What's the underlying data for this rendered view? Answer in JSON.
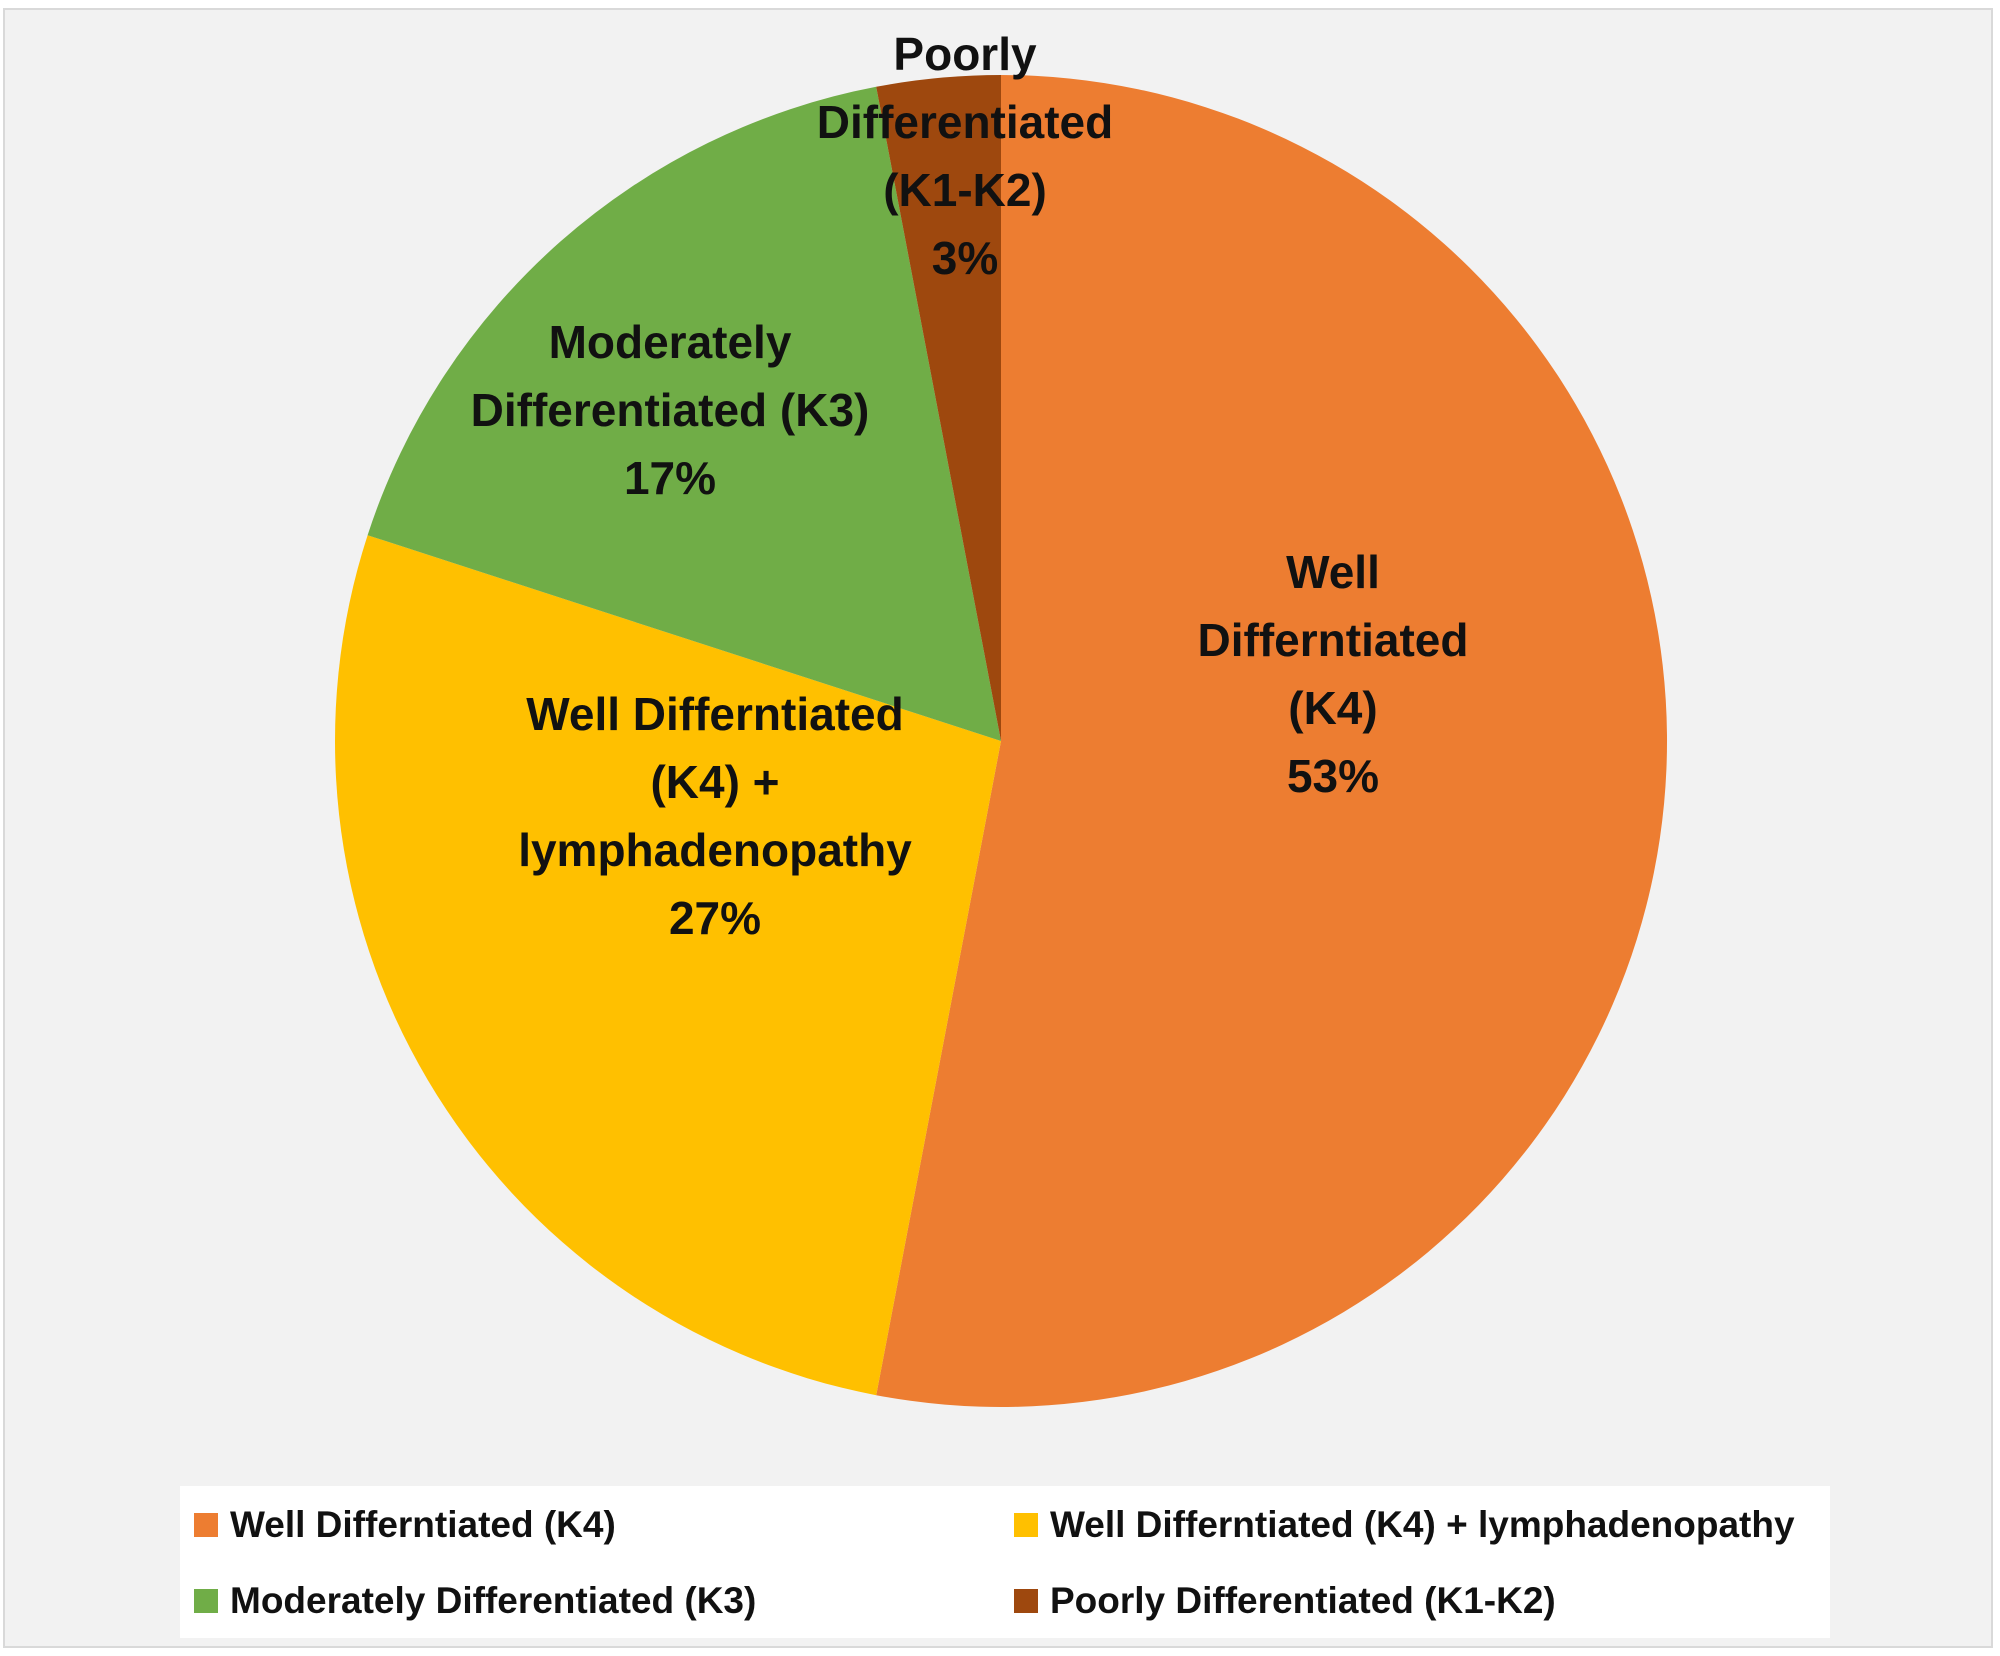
{
  "chart_data": {
    "type": "pie",
    "title": "",
    "start": "12 o'clock, clockwise",
    "slices": [
      {
        "name": "Well Differntiated (K4)",
        "label_lines": [
          "Well",
          "Differntiated",
          "(K4)",
          "53%"
        ],
        "value": 53,
        "percent_label": "53%",
        "color": "#ed7d31"
      },
      {
        "name": "Well Differntiated (K4) + lymphadenopathy",
        "label_lines": [
          "Well Differntiated",
          "(K4) +",
          "lymphadenopathy",
          "27%"
        ],
        "value": 27,
        "percent_label": "27%",
        "color": "#ffc000"
      },
      {
        "name": "Moderately Differentiated (K3)",
        "label_lines": [
          "Moderately",
          "Differentiated (K3)",
          "17%"
        ],
        "value": 17,
        "percent_label": "17%",
        "color": "#70ad47"
      },
      {
        "name": "Poorly Differentiated (K1-K2)",
        "label_lines": [
          "Poorly",
          "Differentiated",
          "(K1-K2)",
          "3%"
        ],
        "value": 3,
        "percent_label": "3%",
        "color": "#9e480e"
      }
    ],
    "legend": {
      "placement": "bottom",
      "entries": [
        "Well Differntiated (K4)",
        "Well Differntiated (K4) + lymphadenopathy",
        "Moderately Differentiated (K3)",
        "Poorly Differentiated (K1-K2)"
      ]
    }
  }
}
